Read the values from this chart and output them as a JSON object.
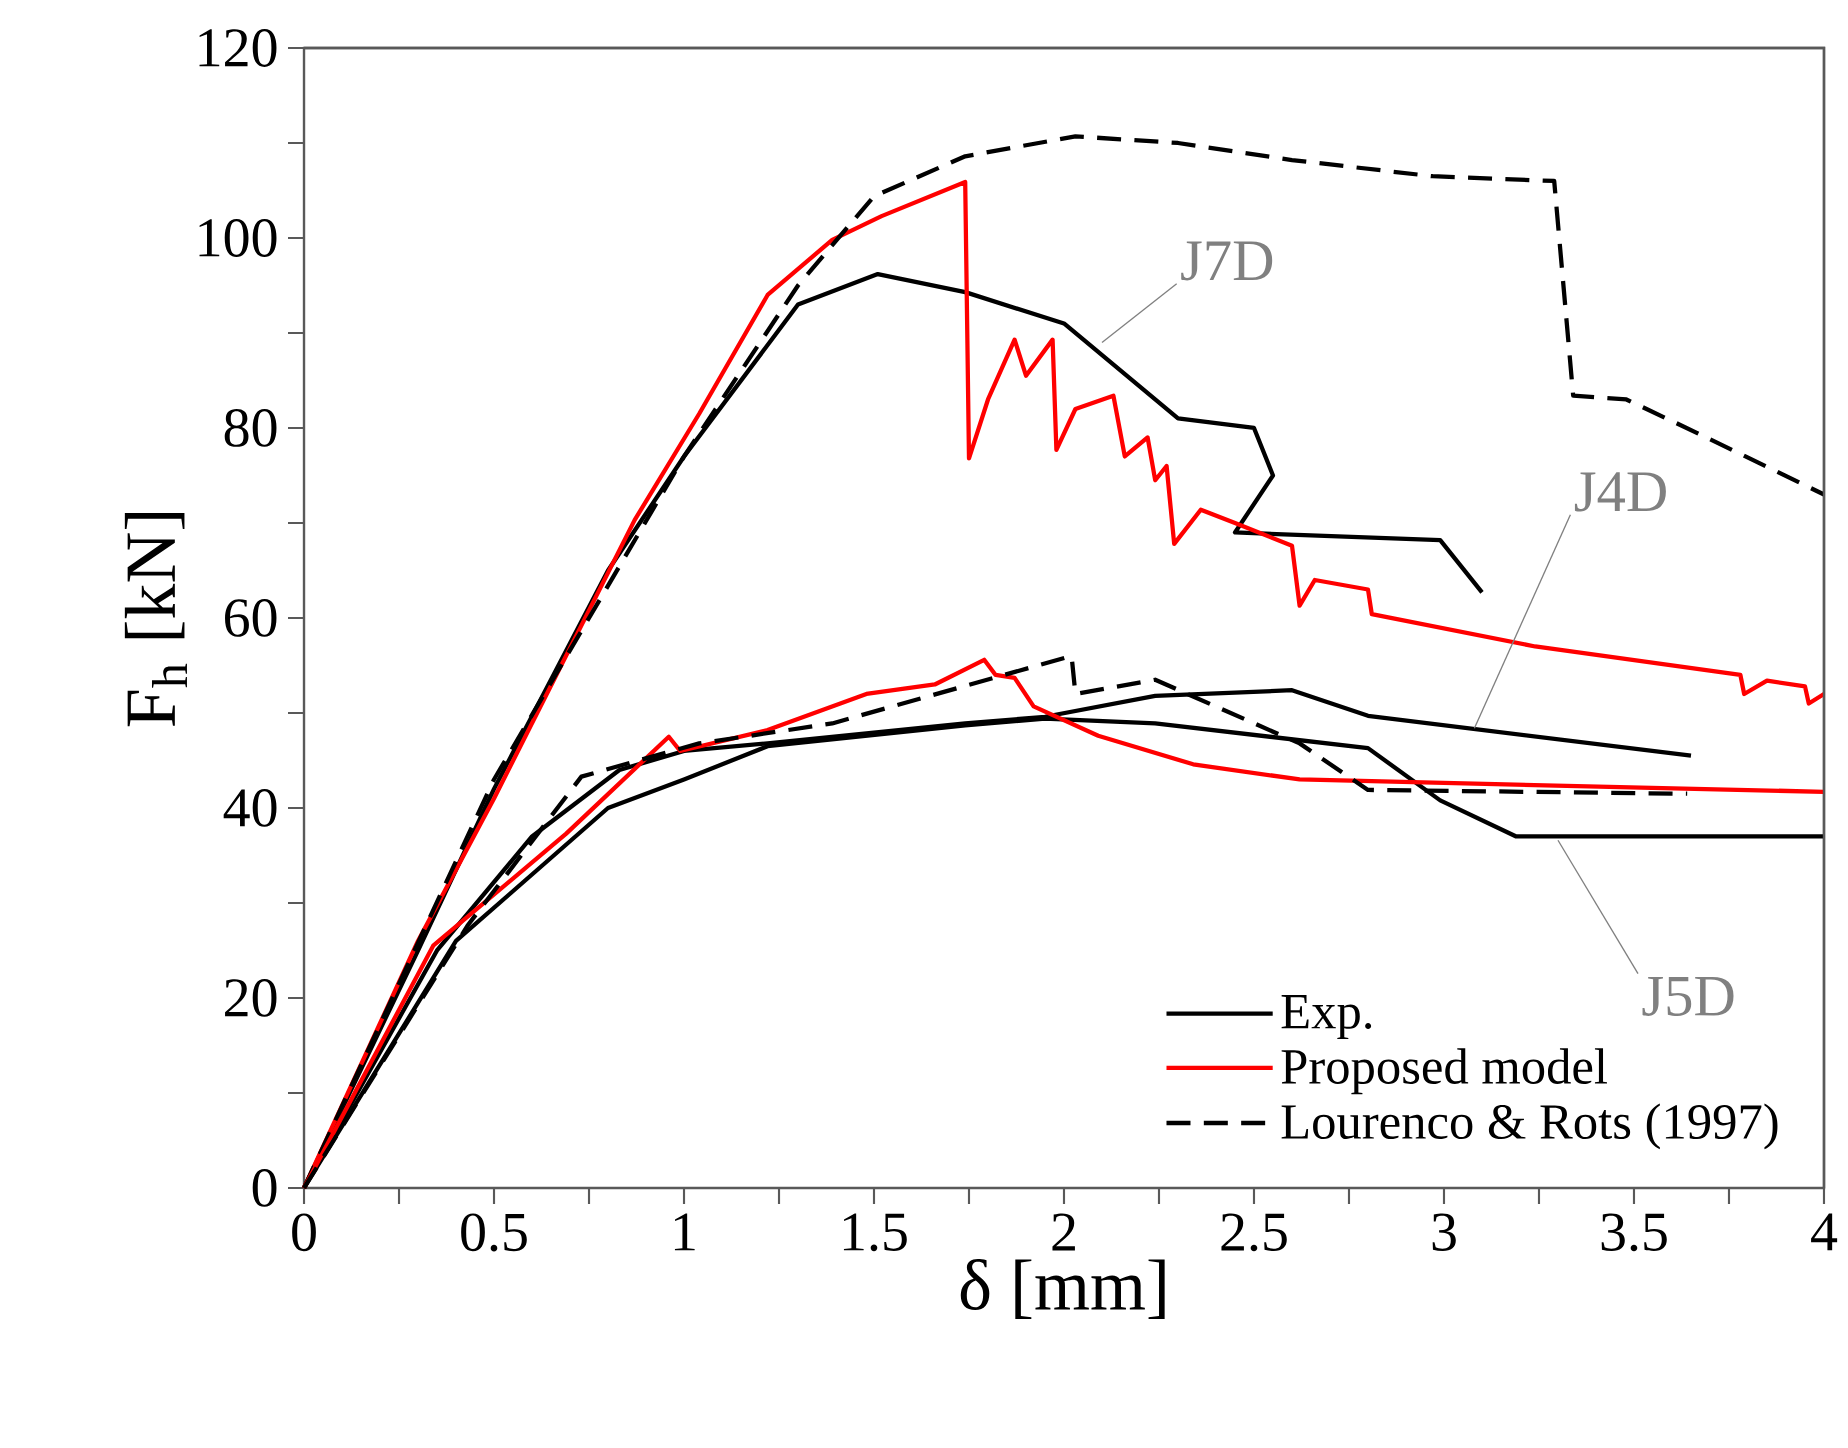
{
  "chart_data": {
    "type": "line",
    "xlabel": "δ [mm]",
    "ylabel": "F$_{h}$ [kN]",
    "xlim": [
      0,
      4
    ],
    "ylim": [
      0,
      120
    ],
    "xticks": [
      0,
      0.5,
      1,
      1.5,
      2,
      2.5,
      3,
      3.5,
      4
    ],
    "yticks": [
      0,
      20,
      40,
      60,
      80,
      100,
      120
    ],
    "legend": "bottom right",
    "marker": "none",
    "grid": false,
    "series": [
      {
        "name": "Exp.",
        "color": "#000000",
        "line_style": "solid",
        "x": [
          0,
          0.3,
          0.5,
          0.8,
          1.0,
          1.3,
          1.51,
          1.74,
          2.0,
          2.3,
          2.5,
          2.55,
          2.45,
          2.99,
          3.1
        ],
        "values": [
          0,
          25,
          42,
          65,
          77,
          93,
          96.2,
          94.3,
          91,
          81,
          80,
          75,
          69,
          68.2,
          62.7
        ]
      },
      {
        "name": "Proposed model",
        "color": "#ff0000",
        "line_style": "solid",
        "x": [
          0,
          0.3,
          0.5,
          0.87,
          1.04,
          1.22,
          1.39,
          1.52,
          1.74,
          1.75,
          1.8,
          1.87,
          1.9,
          1.97,
          1.98,
          2.03,
          2.13,
          2.16,
          2.22,
          2.24,
          2.27,
          2.29,
          2.36,
          2.45,
          2.6,
          2.62,
          2.66,
          2.8,
          2.81,
          3.24,
          3.78,
          3.79,
          3.85,
          3.95,
          3.96,
          4.0
        ],
        "values": [
          0,
          26,
          41,
          70.3,
          81.5,
          94,
          99.8,
          102.3,
          105.9,
          76.8,
          83,
          89.3,
          85.5,
          89.3,
          77.7,
          82,
          83.4,
          77,
          79,
          74.5,
          76,
          67.8,
          71.4,
          70,
          67.6,
          61.3,
          64,
          63,
          60.4,
          57,
          54,
          52,
          53.4,
          52.8,
          51,
          52
        ]
      },
      {
        "name": "Lourenco & Rots (1997)",
        "color": "#000000",
        "line_style": "dashed",
        "x": [
          0,
          0.5,
          1.0,
          1.3,
          1.5,
          1.74,
          2.03,
          2.3,
          2.6,
          2.97,
          3.29,
          3.34,
          3.48,
          3.67,
          4.0
        ],
        "values": [
          0,
          43,
          77,
          95,
          104.4,
          108.6,
          110.7,
          110,
          108.2,
          106.5,
          106,
          83.4,
          83,
          79.4,
          73
        ]
      },
      {
        "color": "#000000",
        "line_style": "solid",
        "x": [
          0,
          0.35,
          0.6,
          0.83,
          1.0,
          1.22,
          1.74,
          1.95,
          2.24,
          2.6,
          2.8,
          3.65
        ],
        "values": [
          0,
          25,
          37,
          44,
          46,
          46.8,
          48.9,
          49.6,
          51.8,
          52.4,
          49.7,
          45.5
        ]
      },
      {
        "color": "#000000",
        "line_style": "solid",
        "x": [
          0,
          0.4,
          0.8,
          1.0,
          1.22,
          1.74,
          1.95,
          2.24,
          2.8,
          2.99,
          3.19,
          4.0
        ],
        "values": [
          0,
          26,
          40,
          43,
          46.5,
          48.7,
          49.4,
          48.9,
          46.3,
          40.8,
          37,
          37
        ]
      },
      {
        "color": "#ff0000",
        "line_style": "solid",
        "x": [
          0,
          0.34,
          0.69,
          0.96,
          0.99,
          1.22,
          1.48,
          1.66,
          1.79,
          1.82,
          1.87,
          1.92,
          2.09,
          2.34,
          2.62,
          4.0
        ],
        "values": [
          0,
          25.5,
          37.3,
          47.5,
          46,
          48.2,
          52,
          53,
          55.6,
          54,
          53.7,
          50.7,
          47.6,
          44.6,
          43,
          41.7
        ]
      },
      {
        "color": "#000000",
        "line_style": "dashed",
        "x": [
          0,
          0.43,
          0.73,
          1.04,
          1.39,
          2.02,
          2.03,
          2.24,
          2.62,
          2.8,
          3.64
        ],
        "values": [
          0,
          27.6,
          43.3,
          46.8,
          48.9,
          56,
          52,
          53.5,
          46.8,
          41.9,
          41.5
        ]
      }
    ],
    "annotations": [
      {
        "text": "J7D",
        "x": 2.1,
        "y": 89
      },
      {
        "text": "J4D",
        "x": 3.08,
        "y": 48.4
      },
      {
        "text": "J5D",
        "x": 3.3,
        "y": 36.6
      }
    ]
  }
}
